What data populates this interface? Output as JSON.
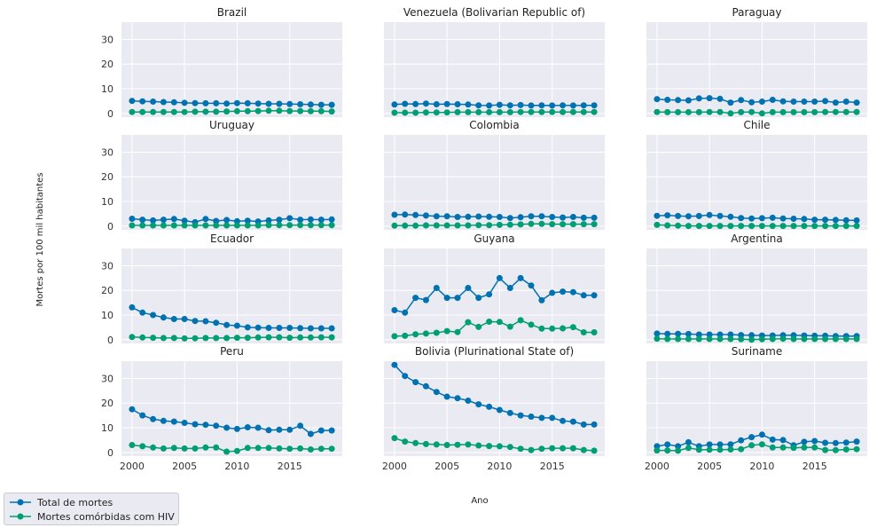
{
  "chart_data": {
    "type": "line",
    "ylabel": "Mortes por 100 mil habitantes",
    "xlabel": "Ano",
    "x": [
      2000,
      2001,
      2002,
      2003,
      2004,
      2005,
      2006,
      2007,
      2008,
      2009,
      2010,
      2011,
      2012,
      2013,
      2014,
      2015,
      2016,
      2017,
      2018,
      2019
    ],
    "xticks": [
      2000,
      2005,
      2010,
      2015
    ],
    "ylim": [
      -1.5,
      37
    ],
    "yticks": [
      0,
      10,
      20,
      30
    ],
    "grid": true,
    "legend_placement": "lower-left",
    "series_names": [
      "Total de mortes",
      "Mortes comórbidas com HIV"
    ],
    "colors": {
      "total": "#0072b2",
      "hiv": "#009e73",
      "panel_bg": "#eaeaf2",
      "grid": "#ffffff"
    },
    "panels": [
      {
        "title": "Brazil",
        "total": [
          5.1,
          4.9,
          4.8,
          4.6,
          4.5,
          4.3,
          4.2,
          4.1,
          4.1,
          4.0,
          4.2,
          4.1,
          4.0,
          3.9,
          3.9,
          3.8,
          3.7,
          3.6,
          3.5,
          3.5
        ],
        "hiv": [
          0.6,
          0.6,
          0.6,
          0.6,
          0.6,
          0.6,
          0.7,
          0.7,
          0.7,
          0.8,
          0.9,
          0.9,
          1.0,
          1.1,
          1.1,
          1.0,
          1.0,
          0.9,
          0.9,
          0.8
        ]
      },
      {
        "title": "Venezuela (Bolivarian Republic of)",
        "total": [
          3.6,
          3.9,
          3.8,
          4.0,
          3.7,
          3.8,
          3.7,
          3.6,
          3.3,
          3.2,
          3.5,
          3.3,
          3.4,
          3.2,
          3.3,
          3.2,
          3.3,
          3.2,
          3.3,
          3.3
        ],
        "hiv": [
          0.3,
          0.3,
          0.3,
          0.4,
          0.4,
          0.4,
          0.5,
          0.5,
          0.5,
          0.5,
          0.5,
          0.5,
          0.6,
          0.6,
          0.6,
          0.6,
          0.6,
          0.6,
          0.6,
          0.6
        ]
      },
      {
        "title": "Paraguay",
        "total": [
          5.8,
          5.5,
          5.4,
          5.3,
          6.1,
          6.2,
          5.9,
          4.4,
          5.4,
          4.5,
          4.8,
          5.5,
          4.9,
          4.8,
          4.8,
          4.8,
          5.0,
          4.4,
          4.8,
          4.4
        ],
        "hiv": [
          0.6,
          0.5,
          0.5,
          0.5,
          0.5,
          0.6,
          0.6,
          0.0,
          0.5,
          0.6,
          0.0,
          0.5,
          0.5,
          0.5,
          0.5,
          0.5,
          0.6,
          0.6,
          0.6,
          0.6
        ]
      },
      {
        "title": "Uruguay",
        "total": [
          3.0,
          2.6,
          2.3,
          2.6,
          2.9,
          2.2,
          1.6,
          2.9,
          2.1,
          2.5,
          2.0,
          2.2,
          1.9,
          2.3,
          2.6,
          3.2,
          2.6,
          2.7,
          2.6,
          2.7
        ],
        "hiv": [
          0.3,
          0.3,
          0.3,
          0.3,
          0.3,
          0.3,
          0.3,
          0.3,
          0.3,
          0.3,
          0.3,
          0.3,
          0.3,
          0.4,
          0.4,
          0.4,
          0.4,
          0.4,
          0.4,
          0.4
        ]
      },
      {
        "title": "Colombia",
        "total": [
          4.6,
          4.7,
          4.5,
          4.3,
          4.0,
          4.0,
          3.7,
          3.8,
          3.9,
          3.8,
          3.7,
          3.3,
          3.6,
          4.0,
          4.0,
          3.7,
          3.5,
          3.7,
          3.4,
          3.4
        ],
        "hiv": [
          0.2,
          0.2,
          0.2,
          0.3,
          0.3,
          0.3,
          0.3,
          0.3,
          0.4,
          0.4,
          0.5,
          0.6,
          0.7,
          0.9,
          0.9,
          0.8,
          0.8,
          0.8,
          0.8,
          0.8
        ]
      },
      {
        "title": "Chile",
        "total": [
          4.2,
          4.4,
          4.1,
          4.0,
          4.1,
          4.5,
          4.1,
          3.8,
          3.3,
          3.1,
          3.2,
          3.4,
          3.1,
          3.0,
          2.9,
          2.6,
          2.6,
          2.5,
          2.4,
          2.3
        ],
        "hiv": [
          0.5,
          0.3,
          0.2,
          0.1,
          0.1,
          0.1,
          0.1,
          0.1,
          0.1,
          0.1,
          0.1,
          0.1,
          0.1,
          0.1,
          0.1,
          0.1,
          0.1,
          0.1,
          0.1,
          0.1
        ]
      },
      {
        "title": "Ecuador",
        "total": [
          13.1,
          11.0,
          10.0,
          9.0,
          8.4,
          8.4,
          7.6,
          7.5,
          6.9,
          6.0,
          5.7,
          5.0,
          4.9,
          4.8,
          4.8,
          4.8,
          4.7,
          4.6,
          4.6,
          4.6
        ],
        "hiv": [
          1.1,
          0.9,
          0.8,
          0.7,
          0.7,
          0.5,
          0.6,
          0.7,
          0.7,
          0.7,
          0.8,
          0.8,
          0.9,
          1.0,
          1.0,
          0.8,
          0.9,
          0.9,
          1.0,
          1.0
        ]
      },
      {
        "title": "Guyana",
        "total": [
          12.0,
          11.0,
          17.0,
          16.1,
          21.0,
          17.0,
          17.0,
          21.0,
          17.0,
          18.4,
          25.0,
          21.0,
          25.0,
          22.0,
          16.0,
          19.0,
          19.5,
          19.3,
          18.0,
          18.0
        ],
        "hiv": [
          1.4,
          1.6,
          2.2,
          2.5,
          2.8,
          3.5,
          3.1,
          7.1,
          5.2,
          7.3,
          7.2,
          5.3,
          7.9,
          6.1,
          4.5,
          4.5,
          4.6,
          5.1,
          3.0,
          3.0
        ]
      },
      {
        "title": "Argentina",
        "total": [
          2.5,
          2.4,
          2.4,
          2.3,
          2.1,
          2.1,
          2.1,
          2.1,
          1.9,
          1.8,
          1.7,
          1.7,
          1.8,
          1.8,
          1.7,
          1.6,
          1.6,
          1.5,
          1.5,
          1.5
        ],
        "hiv": [
          0.4,
          0.3,
          0.3,
          0.3,
          0.3,
          0.3,
          0.3,
          0.3,
          0.2,
          0.0,
          0.2,
          0.3,
          0.4,
          0.3,
          0.3,
          0.3,
          0.3,
          0.3,
          0.3,
          0.3
        ]
      },
      {
        "title": "Peru",
        "total": [
          17.5,
          15.0,
          13.5,
          12.8,
          12.5,
          12.0,
          11.4,
          11.2,
          10.8,
          10.0,
          9.5,
          10.2,
          10.0,
          9.0,
          9.2,
          9.2,
          10.8,
          7.5,
          8.9,
          8.9
        ],
        "hiv": [
          3.0,
          2.5,
          2.0,
          1.6,
          1.8,
          1.6,
          1.6,
          2.0,
          2.0,
          0.3,
          0.6,
          1.8,
          1.8,
          1.8,
          1.6,
          1.5,
          1.6,
          1.2,
          1.5,
          1.5
        ]
      },
      {
        "title": "Bolivia (Plurinational State of)",
        "total": [
          35.5,
          31.0,
          28.5,
          26.8,
          24.5,
          22.6,
          22.0,
          21.0,
          19.5,
          18.5,
          17.2,
          16.0,
          15.0,
          14.5,
          14.0,
          14.0,
          12.8,
          12.5,
          11.3,
          11.3
        ],
        "hiv": [
          5.8,
          4.4,
          3.8,
          3.4,
          3.2,
          3.0,
          3.1,
          3.2,
          2.8,
          2.6,
          2.5,
          2.2,
          1.5,
          1.0,
          1.5,
          1.7,
          1.7,
          1.7,
          1.0,
          0.7
        ]
      },
      {
        "title": "Suriname",
        "total": [
          2.5,
          3.2,
          2.5,
          4.1,
          2.5,
          3.2,
          3.2,
          3.3,
          4.9,
          6.2,
          7.2,
          5.2,
          5.0,
          2.9,
          4.3,
          4.6,
          3.9,
          3.8,
          4.0,
          4.4
        ],
        "hiv": [
          0.8,
          0.8,
          0.7,
          1.8,
          1.1,
          1.1,
          1.1,
          1.2,
          1.3,
          2.9,
          3.3,
          2.0,
          2.0,
          1.9,
          2.0,
          2.0,
          1.0,
          0.9,
          1.2,
          1.3
        ]
      }
    ]
  }
}
